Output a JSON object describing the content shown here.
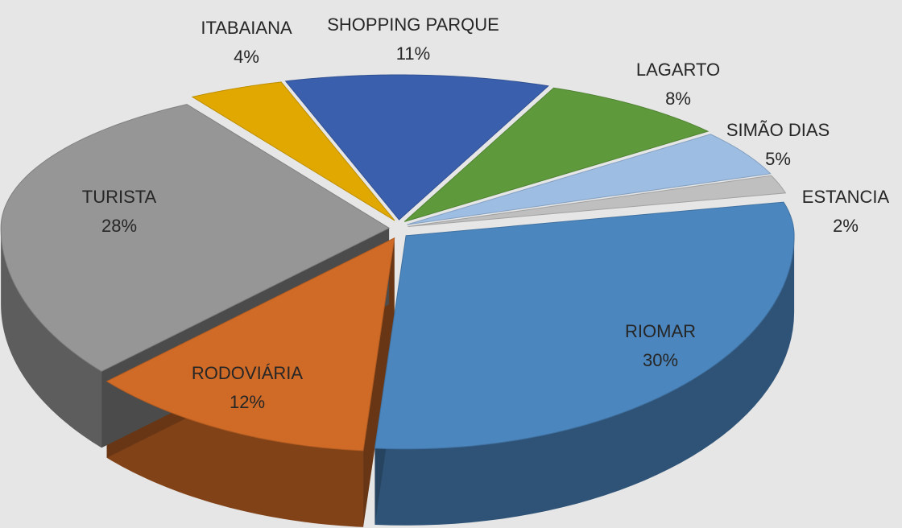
{
  "chart_data": {
    "type": "pie",
    "categories": [
      "SHOPPING PARQUE",
      "LAGARTO",
      "SIMÃO DIAS",
      "ESTANCIA",
      "RIOMAR",
      "RODOVIÁRIA",
      "TURISTA",
      "ITABAIANA"
    ],
    "values": [
      11,
      8,
      5,
      2,
      30,
      12,
      28,
      4
    ],
    "value_labels": [
      "11%",
      "8%",
      "5%",
      "2%",
      "30%",
      "12%",
      "28%",
      "4%"
    ],
    "colors": [
      "#3a5fad",
      "#5e9a3c",
      "#9dbde3",
      "#bfbfbf",
      "#4b86be",
      "#d06b27",
      "#969696",
      "#e0a800"
    ]
  }
}
